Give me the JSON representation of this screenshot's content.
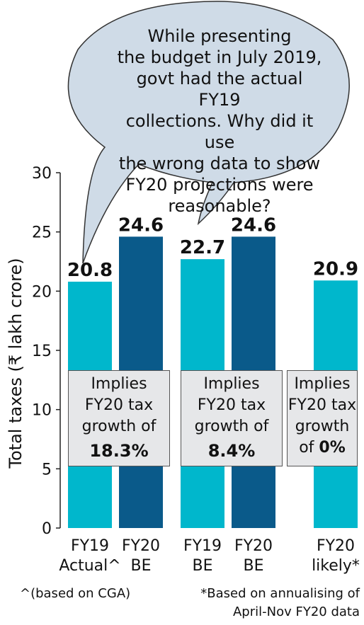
{
  "callout": {
    "lines": [
      "While presenting",
      "the budget in July 2019,",
      "govt had the actual FY19",
      "collections. Why did it use",
      "the wrong data to show",
      "FY20 projections were",
      "reasonable?"
    ]
  },
  "annotations": [
    {
      "l1": "Implies",
      "l2": "FY20 tax",
      "l3": "growth of",
      "value": "18.3%"
    },
    {
      "l1": "Implies",
      "l2": "FY20 tax",
      "l3": "growth of",
      "value": "8.4%"
    },
    {
      "l1": "Implies",
      "l2": "FY20 tax",
      "l3": "growth",
      "l4": "of",
      "value": "0%"
    }
  ],
  "footnotes": {
    "left": "^(based on CGA)",
    "right_line1": "*Based on annualising of",
    "right_line2": "April-Nov FY20 data"
  },
  "colors": {
    "light_bar": "#00b7cc",
    "dark_bar": "#0a5a8a",
    "box": "#e6e7e9"
  },
  "chart_data": {
    "type": "bar",
    "ylabel": "Total taxes (₹ lakh crore)",
    "ylim": [
      0,
      30
    ],
    "yticks": [
      0,
      5,
      10,
      15,
      20,
      25,
      30
    ],
    "bars": [
      {
        "label_line1": "FY19",
        "label_line2": "Actual^",
        "value": 20.8,
        "value_label": "20.8",
        "color": "#00b7cc"
      },
      {
        "label_line1": "FY20",
        "label_line2": "BE",
        "value": 24.6,
        "value_label": "24.6",
        "color": "#0a5a8a"
      },
      {
        "label_line1": "FY19",
        "label_line2": "BE",
        "value": 22.7,
        "value_label": "22.7",
        "color": "#00b7cc"
      },
      {
        "label_line1": "FY20",
        "label_line2": "BE",
        "value": 24.6,
        "value_label": "24.6",
        "color": "#0a5a8a"
      },
      {
        "label_line1": "FY20",
        "label_line2": "likely*",
        "value": 20.9,
        "value_label": "20.9",
        "color": "#00b7cc"
      }
    ]
  }
}
